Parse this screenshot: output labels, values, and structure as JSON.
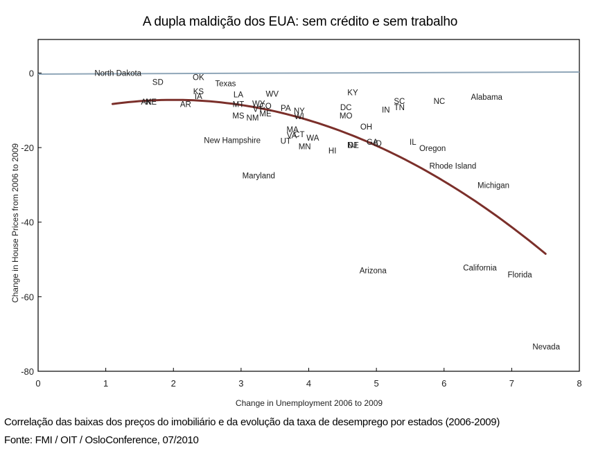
{
  "title": "A dupla maldição dos EUA: sem crédito e sem trabalho",
  "captions": {
    "line1": "Correlação das baixas dos preços do imobiliário e da evolução da taxa de desemprego por estados (2006-2009)",
    "line2": "Fonte: FMI / OIT / OsloConference, 07/2010"
  },
  "colors": {
    "trend": "#7b2f2a",
    "zero_line": "#8fa6b8",
    "axis": "#000000",
    "label": "#1a1a1a"
  },
  "chart_data": {
    "type": "scatter",
    "title": "A dupla maldição dos EUA: sem crédito e sem trabalho",
    "xlabel": "Change in Unemployment 2006 to 2009",
    "ylabel": "Change in House Prices from 2006 to 2009",
    "xlim": [
      0,
      8
    ],
    "ylim": [
      -80,
      9
    ],
    "xticks": [
      0,
      1,
      2,
      3,
      4,
      5,
      6,
      7,
      8
    ],
    "yticks": [
      0,
      -20,
      -40,
      -60,
      -80
    ],
    "grid": false,
    "legend": "none",
    "reference_line": {
      "y": 0
    },
    "trend": {
      "type": "quadratic",
      "formula": "y = -1.365*(x-2)^2 - 7.2",
      "x_range": [
        1.1,
        7.5
      ]
    },
    "points": [
      {
        "label": "North Dakota",
        "x": 1.18,
        "y": 0.0
      },
      {
        "label": "SD",
        "x": 1.77,
        "y": -2.4
      },
      {
        "label": "OK",
        "x": 2.37,
        "y": -1.1
      },
      {
        "label": "Texas",
        "x": 2.77,
        "y": -2.8
      },
      {
        "label": "KS",
        "x": 2.37,
        "y": -4.9
      },
      {
        "label": "IA",
        "x": 2.37,
        "y": -6.2
      },
      {
        "label": "AK",
        "x": 1.6,
        "y": -7.7
      },
      {
        "label": "NE",
        "x": 1.67,
        "y": -7.7
      },
      {
        "label": "AR",
        "x": 2.18,
        "y": -8.4
      },
      {
        "label": "LA",
        "x": 2.96,
        "y": -5.8
      },
      {
        "label": "MT",
        "x": 2.96,
        "y": -8.4
      },
      {
        "label": "MS",
        "x": 2.96,
        "y": -11.4
      },
      {
        "label": "NM",
        "x": 3.17,
        "y": -12.0
      },
      {
        "label": "WV",
        "x": 3.46,
        "y": -5.6
      },
      {
        "label": "WY",
        "x": 3.26,
        "y": -8.2
      },
      {
        "label": "CO",
        "x": 3.36,
        "y": -8.8
      },
      {
        "label": "VT",
        "x": 3.25,
        "y": -9.7
      },
      {
        "label": "ME",
        "x": 3.36,
        "y": -10.9
      },
      {
        "label": "PA",
        "x": 3.66,
        "y": -9.4
      },
      {
        "label": "NY",
        "x": 3.86,
        "y": -10.1
      },
      {
        "label": "WI",
        "x": 3.86,
        "y": -11.6
      },
      {
        "label": "New Hampshire",
        "x": 2.87,
        "y": -18.0
      },
      {
        "label": "MA",
        "x": 3.76,
        "y": -15.2
      },
      {
        "label": "VA",
        "x": 3.75,
        "y": -16.7
      },
      {
        "label": "CT",
        "x": 3.86,
        "y": -16.5
      },
      {
        "label": "UT",
        "x": 3.66,
        "y": -18.2
      },
      {
        "label": "WA",
        "x": 4.06,
        "y": -17.4
      },
      {
        "label": "MN",
        "x": 3.94,
        "y": -19.7
      },
      {
        "label": "HI",
        "x": 4.35,
        "y": -20.8
      },
      {
        "label": "Maryland",
        "x": 3.26,
        "y": -27.5
      },
      {
        "label": "KY",
        "x": 4.65,
        "y": -5.2
      },
      {
        "label": "DC",
        "x": 4.55,
        "y": -9.2
      },
      {
        "label": "MO",
        "x": 4.55,
        "y": -11.4
      },
      {
        "label": "OH",
        "x": 4.85,
        "y": -14.4
      },
      {
        "label": "NJ",
        "x": 4.64,
        "y": -19.3
      },
      {
        "label": "DE",
        "x": 4.66,
        "y": -19.3
      },
      {
        "label": "GA",
        "x": 4.94,
        "y": -18.5
      },
      {
        "label": "ID",
        "x": 5.02,
        "y": -18.9
      },
      {
        "label": "IN",
        "x": 5.14,
        "y": -9.9
      },
      {
        "label": "SC",
        "x": 5.34,
        "y": -7.5
      },
      {
        "label": "TN",
        "x": 5.34,
        "y": -9.2
      },
      {
        "label": "NC",
        "x": 5.93,
        "y": -7.5
      },
      {
        "label": "Alabama",
        "x": 6.63,
        "y": -6.4
      },
      {
        "label": "IL",
        "x": 5.54,
        "y": -18.5
      },
      {
        "label": "Oregon",
        "x": 5.83,
        "y": -20.2
      },
      {
        "label": "Rhode Island",
        "x": 6.13,
        "y": -24.9
      },
      {
        "label": "Michigan",
        "x": 6.73,
        "y": -30.1
      },
      {
        "label": "Arizona",
        "x": 4.95,
        "y": -53.0
      },
      {
        "label": "California",
        "x": 6.53,
        "y": -52.2
      },
      {
        "label": "Florida",
        "x": 7.12,
        "y": -54.1
      },
      {
        "label": "Nevada",
        "x": 7.51,
        "y": -73.4
      }
    ]
  }
}
